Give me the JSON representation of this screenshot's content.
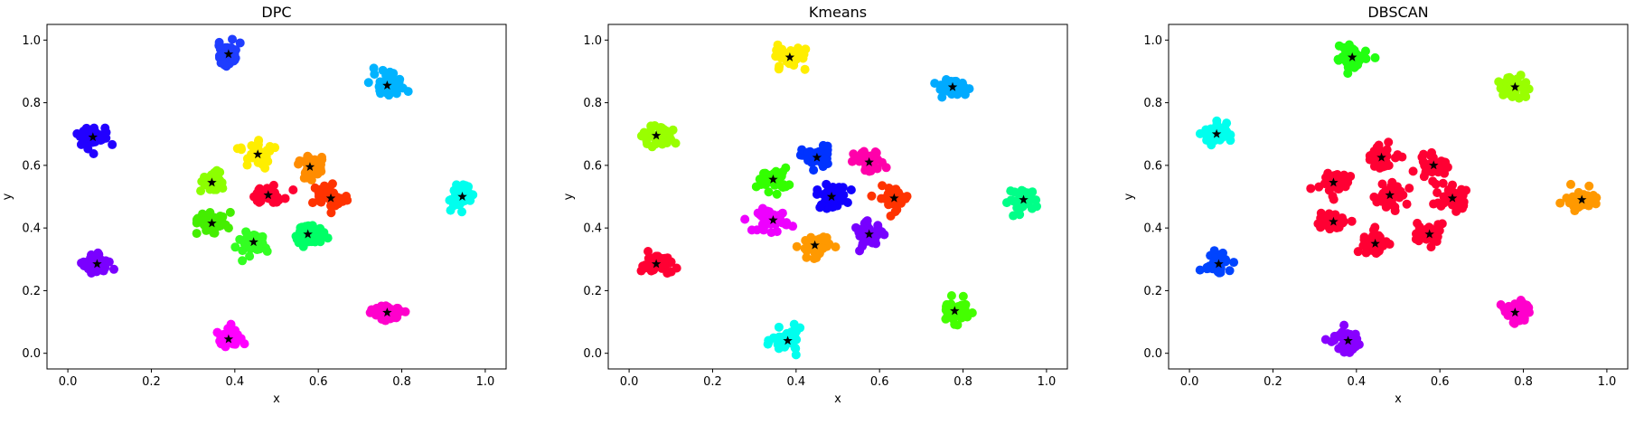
{
  "chart_data": [
    {
      "type": "scatter",
      "title": "DPC",
      "xlabel": "x",
      "ylabel": "y",
      "xlim": [
        -0.05,
        1.05
      ],
      "ylim": [
        -0.05,
        1.05
      ],
      "xticks": [
        "0.0",
        "0.2",
        "0.4",
        "0.6",
        "0.8",
        "1.0"
      ],
      "yticks": [
        "0.0",
        "0.2",
        "0.4",
        "0.6",
        "0.8",
        "1.0"
      ],
      "grid": false,
      "clusters": [
        {
          "center": [
            0.385,
            0.955
          ],
          "color": "#1f3dff"
        },
        {
          "center": [
            0.765,
            0.855
          ],
          "color": "#00b3ff"
        },
        {
          "center": [
            0.06,
            0.69
          ],
          "color": "#2200ff"
        },
        {
          "center": [
            0.455,
            0.635
          ],
          "color": "#ffee00"
        },
        {
          "center": [
            0.58,
            0.595
          ],
          "color": "#ff8c00"
        },
        {
          "center": [
            0.345,
            0.545
          ],
          "color": "#8cff00"
        },
        {
          "center": [
            0.48,
            0.505
          ],
          "color": "#ff0033"
        },
        {
          "center": [
            0.63,
            0.495
          ],
          "color": "#ff3300"
        },
        {
          "center": [
            0.945,
            0.5
          ],
          "color": "#00ffee"
        },
        {
          "center": [
            0.345,
            0.415
          ],
          "color": "#44ee00"
        },
        {
          "center": [
            0.445,
            0.355
          ],
          "color": "#33ff22"
        },
        {
          "center": [
            0.575,
            0.38
          ],
          "color": "#00ff66"
        },
        {
          "center": [
            0.07,
            0.285
          ],
          "color": "#7a00ff"
        },
        {
          "center": [
            0.765,
            0.13
          ],
          "color": "#ff00cc"
        },
        {
          "center": [
            0.385,
            0.045
          ],
          "color": "#ff00ff"
        }
      ]
    },
    {
      "type": "scatter",
      "title": "Kmeans",
      "xlabel": "x",
      "ylabel": "y",
      "xlim": [
        -0.05,
        1.05
      ],
      "ylim": [
        -0.05,
        1.05
      ],
      "xticks": [
        "0.0",
        "0.2",
        "0.4",
        "0.6",
        "0.8",
        "1.0"
      ],
      "yticks": [
        "0.0",
        "0.2",
        "0.4",
        "0.6",
        "0.8",
        "1.0"
      ],
      "grid": false,
      "clusters": [
        {
          "center": [
            0.385,
            0.945
          ],
          "color": "#ffee00"
        },
        {
          "center": [
            0.775,
            0.85
          ],
          "color": "#00aaff"
        },
        {
          "center": [
            0.065,
            0.695
          ],
          "color": "#99ff00"
        },
        {
          "center": [
            0.45,
            0.625
          ],
          "color": "#0033ff"
        },
        {
          "center": [
            0.575,
            0.61
          ],
          "color": "#ff00aa"
        },
        {
          "center": [
            0.345,
            0.555
          ],
          "color": "#33ff00"
        },
        {
          "center": [
            0.485,
            0.5
          ],
          "color": "#1100ff"
        },
        {
          "center": [
            0.635,
            0.495
          ],
          "color": "#ff3300"
        },
        {
          "center": [
            0.945,
            0.49
          ],
          "color": "#00ff88"
        },
        {
          "center": [
            0.345,
            0.425
          ],
          "color": "#ee00ff"
        },
        {
          "center": [
            0.575,
            0.38
          ],
          "color": "#7700ff"
        },
        {
          "center": [
            0.445,
            0.345
          ],
          "color": "#ff9900"
        },
        {
          "center": [
            0.065,
            0.285
          ],
          "color": "#ff0033"
        },
        {
          "center": [
            0.78,
            0.135
          ],
          "color": "#44ff00"
        },
        {
          "center": [
            0.38,
            0.04
          ],
          "color": "#00ffee"
        }
      ]
    },
    {
      "type": "scatter",
      "title": "DBSCAN",
      "xlabel": "x",
      "ylabel": "y",
      "xlim": [
        -0.05,
        1.05
      ],
      "ylim": [
        -0.05,
        1.05
      ],
      "xticks": [
        "0.0",
        "0.2",
        "0.4",
        "0.6",
        "0.8",
        "1.0"
      ],
      "yticks": [
        "0.0",
        "0.2",
        "0.4",
        "0.6",
        "0.8",
        "1.0"
      ],
      "grid": false,
      "clusters": [
        {
          "center": [
            0.39,
            0.945
          ],
          "color": "#22ff11"
        },
        {
          "center": [
            0.78,
            0.85
          ],
          "color": "#99ff00"
        },
        {
          "center": [
            0.065,
            0.7
          ],
          "color": "#00ffee"
        },
        {
          "center": [
            0.46,
            0.625
          ],
          "color": "#ff0033"
        },
        {
          "center": [
            0.585,
            0.6
          ],
          "color": "#ff0033"
        },
        {
          "center": [
            0.345,
            0.545
          ],
          "color": "#ff0033"
        },
        {
          "center": [
            0.48,
            0.505
          ],
          "color": "#ff0033"
        },
        {
          "center": [
            0.63,
            0.495
          ],
          "color": "#ff0033"
        },
        {
          "center": [
            0.94,
            0.49
          ],
          "color": "#ff9900"
        },
        {
          "center": [
            0.345,
            0.42
          ],
          "color": "#ff0033"
        },
        {
          "center": [
            0.445,
            0.35
          ],
          "color": "#ff0033"
        },
        {
          "center": [
            0.575,
            0.38
          ],
          "color": "#ff0033"
        },
        {
          "center": [
            0.07,
            0.285
          ],
          "color": "#0044ff"
        },
        {
          "center": [
            0.78,
            0.13
          ],
          "color": "#ff00cc"
        },
        {
          "center": [
            0.38,
            0.04
          ],
          "color": "#8800ff"
        }
      ]
    }
  ]
}
